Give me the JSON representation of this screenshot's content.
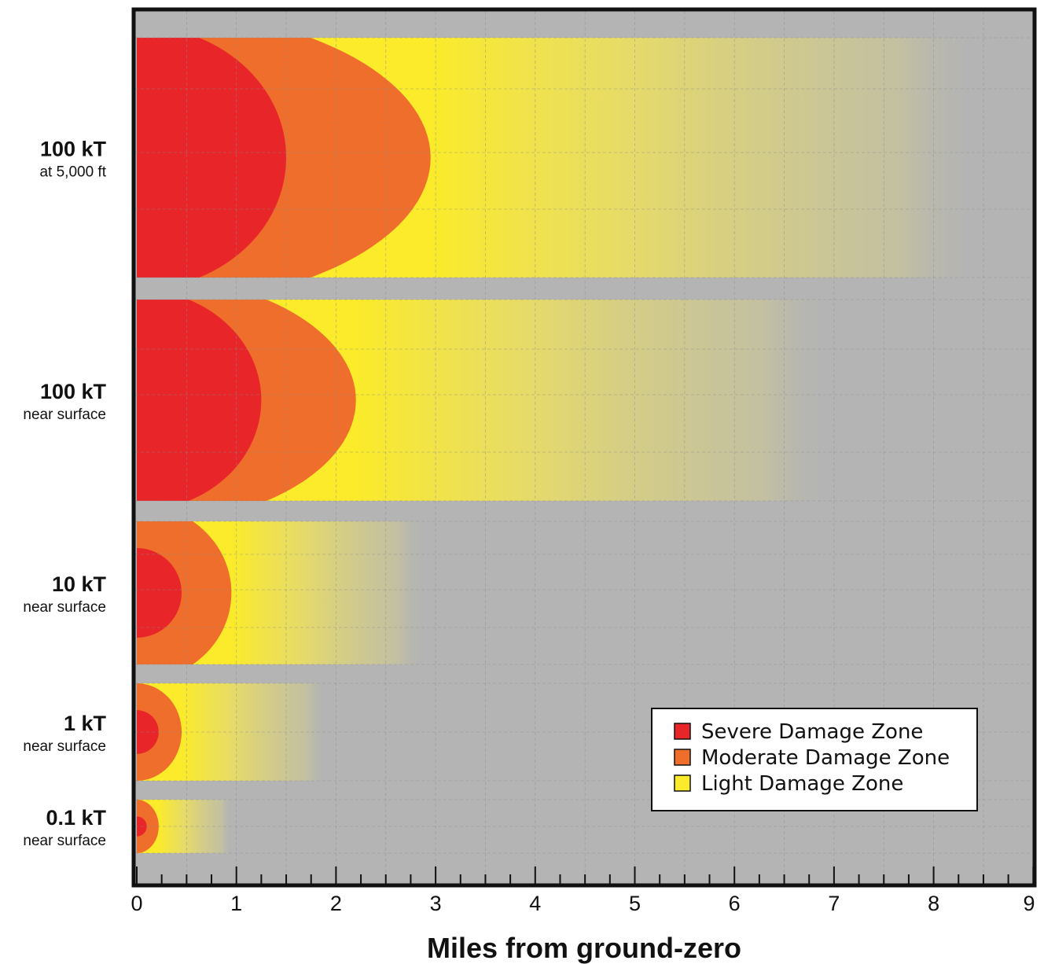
{
  "chart_data": {
    "type": "bar",
    "xlabel": "Miles from ground-zero",
    "ylabel": "",
    "xlim": [
      0,
      9
    ],
    "x_ticks": [
      "0",
      "1",
      "2",
      "3",
      "4",
      "5",
      "6",
      "7",
      "8",
      "9"
    ],
    "grid": true,
    "legend_position": "bottom-right",
    "colors": {
      "severe": "#e8262a",
      "moderate": "#ef6e2b",
      "light": "#fbeb2a",
      "background": "#b4b4b4"
    },
    "categories": [
      {
        "label": "100 kT",
        "sublabel": "at 5,000 ft"
      },
      {
        "label": "100 kT",
        "sublabel": "near surface"
      },
      {
        "label": "10 kT",
        "sublabel": "near surface"
      },
      {
        "label": "1 kT",
        "sublabel": "near surface"
      },
      {
        "label": "0.1 kT",
        "sublabel": "near surface"
      }
    ],
    "series": [
      {
        "name": "Severe Damage Zone",
        "key": "severe",
        "values": [
          1.5,
          1.25,
          0.45,
          0.22,
          0.1
        ]
      },
      {
        "name": "Moderate Damage Zone",
        "key": "moderate",
        "values": [
          2.95,
          2.2,
          0.95,
          0.45,
          0.22
        ]
      },
      {
        "name": "Light Damage Zone",
        "key": "light",
        "values": [
          8.5,
          7.0,
          2.9,
          1.9,
          0.95
        ]
      }
    ]
  }
}
